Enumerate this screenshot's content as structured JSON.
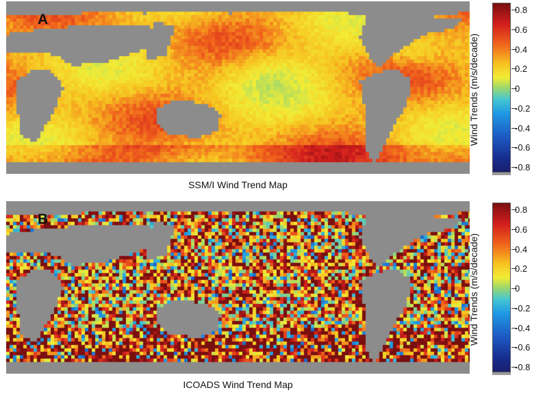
{
  "chart_data": [
    {
      "type": "heatmap",
      "panel_label": "A",
      "caption": "SSM/I Wind Trend Map",
      "colorbar_label": "Wind Trends (m/s/decade)",
      "colorbar_ticks": [
        "0.8",
        "0.6",
        "0.4",
        "0.2",
        "0",
        "-0.2",
        "-0.4",
        "-0.6",
        "-0.8"
      ],
      "vmin": -0.8,
      "vmax": 0.8,
      "land_color": "#8c8c8c",
      "colormap": [
        "#1a1f6e",
        "#1d5fc7",
        "#1f9be3",
        "#46c7d1",
        "#9fd86a",
        "#f2ec35",
        "#f7c321",
        "#f0621c",
        "#d21d1d",
        "#7a0f0f"
      ]
    },
    {
      "type": "heatmap",
      "panel_label": "B",
      "caption": "ICOADS Wind Trend Map",
      "colorbar_label": "Wind Trends (m/s/decade)",
      "colorbar_ticks": [
        "0.8",
        "0.6",
        "0.4",
        "0.2",
        "0",
        "-0.2",
        "-0.4",
        "-0.6",
        "-0.8"
      ],
      "vmin": -0.8,
      "vmax": 0.8,
      "land_color": "#8c8c8c",
      "colormap": [
        "#1a1f6e",
        "#1d5fc7",
        "#1f9be3",
        "#46c7d1",
        "#9fd86a",
        "#f2ec35",
        "#f7c321",
        "#f0621c",
        "#d21d1d",
        "#7a0f0f"
      ]
    }
  ]
}
